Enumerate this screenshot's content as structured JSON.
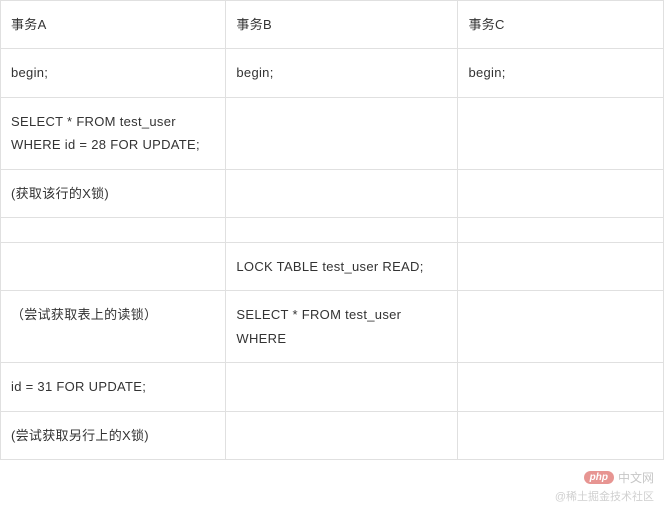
{
  "table": {
    "headers": [
      "事务A",
      "事务B",
      "事务C"
    ],
    "rows": [
      [
        "begin;",
        "begin;",
        "begin;"
      ],
      [
        "SELECT * FROM test_user WHERE id = 28 FOR UPDATE;",
        "",
        ""
      ],
      [
        "(获取该行的X锁)",
        "",
        ""
      ],
      [
        "",
        "",
        ""
      ],
      [
        "",
        "LOCK TABLE test_user READ;",
        ""
      ],
      [
        "（尝试获取表上的读锁）",
        "SELECT * FROM test_user WHERE",
        ""
      ],
      [
        "id = 31 FOR UPDATE;",
        "",
        ""
      ],
      [
        "(尝试获取另行上的X锁)",
        "",
        ""
      ]
    ],
    "border_color": "#e0e0e0",
    "text_color": "#333333",
    "font_size": 13,
    "background_color": "#ffffff"
  },
  "watermark": {
    "php_label": "php",
    "php_text": "中文网",
    "community_text": "@稀土掘金技术社区",
    "php_badge_bg": "#d43f3a",
    "php_badge_color": "#ffffff",
    "text_color": "#999999"
  }
}
